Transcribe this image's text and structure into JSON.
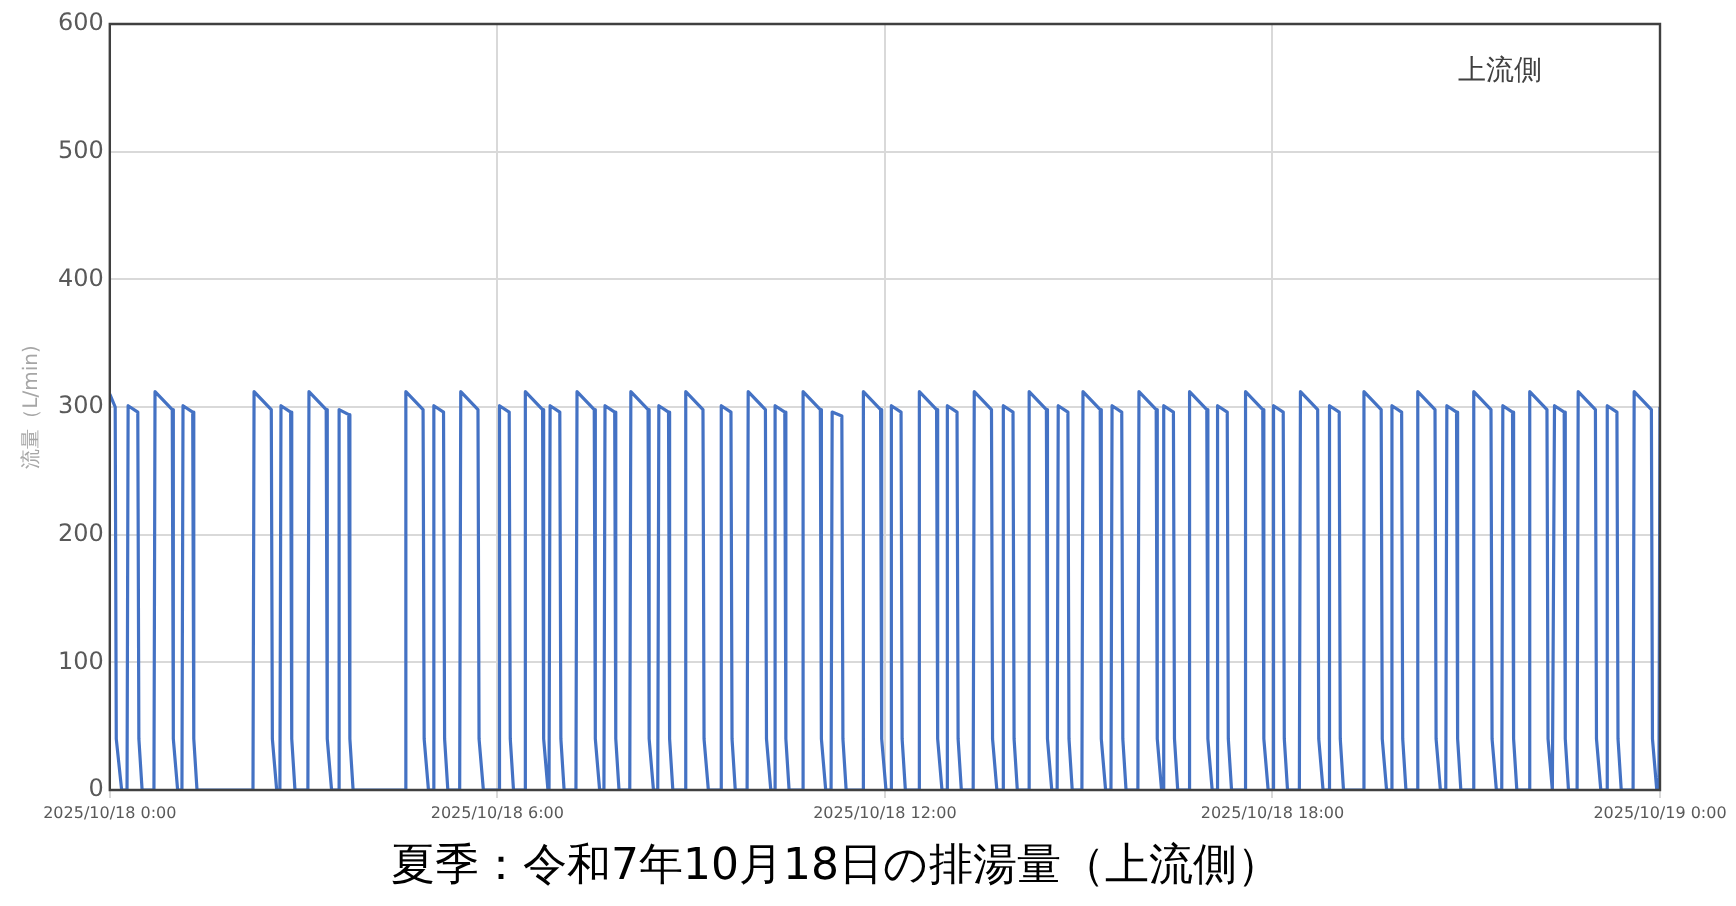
{
  "chart_data": {
    "type": "line",
    "title": "夏季：令和7年10月18日の排湯量（上流側）",
    "ylabel": "流量（L/min)",
    "annotations": [
      "上流側"
    ],
    "xlim": [
      "2025-10-18T00:00",
      "2025-10-19T00:00"
    ],
    "xticks": [
      {
        "value": "2025-10-18T00:00",
        "label": "2025/10/18 0:00"
      },
      {
        "value": "2025-10-18T06:00",
        "label": "2025/10/18 6:00"
      },
      {
        "value": "2025-10-18T12:00",
        "label": "2025/10/18 12:00"
      },
      {
        "value": "2025-10-18T18:00",
        "label": "2025/10/18 18:00"
      },
      {
        "value": "2025-10-19T00:00",
        "label": "2025/10/19 0:00"
      }
    ],
    "ylim": [
      0,
      600
    ],
    "yticks": [
      0,
      100,
      200,
      300,
      400,
      500,
      600
    ],
    "grid": true,
    "legend": false,
    "marker": "none",
    "line_style": "solid",
    "color": "#4472c4",
    "x": [
      "2025-10-18T00:00",
      "2025-10-18T00:05",
      "2025-10-18T00:06",
      "2025-10-18T00:11",
      "2025-10-18T00:16",
      "2025-10-18T00:17",
      "2025-10-18T00:26",
      "2025-10-18T00:27",
      "2025-10-18T00:30",
      "2025-10-18T00:41",
      "2025-10-18T00:42",
      "2025-10-18T00:58",
      "2025-10-18T00:59",
      "2025-10-18T01:03",
      "2025-10-18T01:07",
      "2025-10-18T01:08",
      "2025-10-18T01:17",
      "2025-10-18T01:18",
      "2025-10-18T01:21",
      "2025-10-18T02:13",
      "2025-10-18T02:14",
      "2025-10-18T02:30",
      "2025-10-18T02:31",
      "2025-10-18T02:35",
      "2025-10-18T02:38",
      "2025-10-18T02:39",
      "2025-10-18T02:48",
      "2025-10-18T02:49",
      "2025-10-18T02:52",
      "2025-10-18T03:04",
      "2025-10-18T03:05",
      "2025-10-18T03:21",
      "2025-10-18T03:22",
      "2025-10-18T03:26",
      "2025-10-18T03:32",
      "2025-10-18T03:33",
      "2025-10-18T03:42",
      "2025-10-18T03:43",
      "2025-10-18T03:46",
      "2025-10-18T04:34",
      "2025-10-18T04:35",
      "2025-10-18T04:51",
      "2025-10-18T04:52",
      "2025-10-18T04:56",
      "2025-10-18T05:00",
      "2025-10-18T05:01",
      "2025-10-18T05:10",
      "2025-10-18T05:11",
      "2025-10-18T05:14",
      "2025-10-18T05:25",
      "2025-10-18T05:26",
      "2025-10-18T05:42",
      "2025-10-18T05:43",
      "2025-10-18T05:47",
      "2025-10-18T06:01",
      "2025-10-18T06:02",
      "2025-10-18T06:11",
      "2025-10-18T06:12",
      "2025-10-18T06:15",
      "2025-10-18T06:25",
      "2025-10-18T06:26",
      "2025-10-18T06:42",
      "2025-10-18T06:43",
      "2025-10-18T06:47",
      "2025-10-18T06:48",
      "2025-10-18T06:49",
      "2025-10-18T06:58",
      "2025-10-18T06:59",
      "2025-10-18T07:02",
      "2025-10-18T07:13",
      "2025-10-18T07:14",
      "2025-10-18T07:30",
      "2025-10-18T07:31",
      "2025-10-18T07:35",
      "2025-10-18T07:39",
      "2025-10-18T07:40",
      "2025-10-18T07:49",
      "2025-10-18T07:50",
      "2025-10-18T07:53",
      "2025-10-18T08:03",
      "2025-10-18T08:04",
      "2025-10-18T08:20",
      "2025-10-18T08:21",
      "2025-10-18T08:25",
      "2025-10-18T08:29",
      "2025-10-18T08:30",
      "2025-10-18T08:39",
      "2025-10-18T08:40",
      "2025-10-18T08:43",
      "2025-10-18T08:54",
      "2025-10-18T08:55",
      "2025-10-18T09:11",
      "2025-10-18T09:12",
      "2025-10-18T09:16",
      "2025-10-18T09:27",
      "2025-10-18T09:28",
      "2025-10-18T09:37",
      "2025-10-18T09:38",
      "2025-10-18T09:41",
      "2025-10-18T09:52",
      "2025-10-18T09:53",
      "2025-10-18T10:09",
      "2025-10-18T10:10",
      "2025-10-18T10:14",
      "2025-10-18T10:17",
      "2025-10-18T10:18",
      "2025-10-18T10:27",
      "2025-10-18T10:28",
      "2025-10-18T10:31",
      "2025-10-18T10:43",
      "2025-10-18T10:44",
      "2025-10-18T11:00",
      "2025-10-18T11:01",
      "2025-10-18T11:05",
      "2025-10-18T11:10",
      "2025-10-18T11:11",
      "2025-10-18T11:20",
      "2025-10-18T11:21",
      "2025-10-18T11:24",
      "2025-10-18T11:39",
      "2025-10-18T11:40",
      "2025-10-18T11:56",
      "2025-10-18T11:57",
      "2025-10-18T12:01",
      "2025-10-18T12:05",
      "2025-10-18T12:06",
      "2025-10-18T12:15",
      "2025-10-18T12:16",
      "2025-10-18T12:19",
      "2025-10-18T12:31",
      "2025-10-18T12:32",
      "2025-10-18T12:48",
      "2025-10-18T12:49",
      "2025-10-18T12:53",
      "2025-10-18T12:57",
      "2025-10-18T12:58",
      "2025-10-18T13:07",
      "2025-10-18T13:08",
      "2025-10-18T13:11",
      "2025-10-18T13:22",
      "2025-10-18T13:23",
      "2025-10-18T13:39",
      "2025-10-18T13:40",
      "2025-10-18T13:44",
      "2025-10-18T13:49",
      "2025-10-18T13:50",
      "2025-10-18T13:59",
      "2025-10-18T14:00",
      "2025-10-18T14:03",
      "2025-10-18T14:13",
      "2025-10-18T14:14",
      "2025-10-18T14:30",
      "2025-10-18T14:31",
      "2025-10-18T14:35",
      "2025-10-18T14:40",
      "2025-10-18T14:41",
      "2025-10-18T14:50",
      "2025-10-18T14:51",
      "2025-10-18T14:54",
      "2025-10-18T15:03",
      "2025-10-18T15:04",
      "2025-10-18T15:20",
      "2025-10-18T15:21",
      "2025-10-18T15:25",
      "2025-10-18T15:30",
      "2025-10-18T15:31",
      "2025-10-18T15:40",
      "2025-10-18T15:41",
      "2025-10-18T15:44",
      "2025-10-18T15:55",
      "2025-10-18T15:56",
      "2025-10-18T16:12",
      "2025-10-18T16:13",
      "2025-10-18T16:17",
      "2025-10-18T16:18",
      "2025-10-18T16:19",
      "2025-10-18T16:28",
      "2025-10-18T16:29",
      "2025-10-18T16:32",
      "2025-10-18T16:42",
      "2025-10-18T16:43",
      "2025-10-18T16:59",
      "2025-10-18T17:00",
      "2025-10-18T17:04",
      "2025-10-18T17:08",
      "2025-10-18T17:09",
      "2025-10-18T17:18",
      "2025-10-18T17:19",
      "2025-10-18T17:22",
      "2025-10-18T17:34",
      "2025-10-18T17:35",
      "2025-10-18T17:51",
      "2025-10-18T17:52",
      "2025-10-18T17:56",
      "2025-10-18T18:00",
      "2025-10-18T18:01",
      "2025-10-18T18:10",
      "2025-10-18T18:11",
      "2025-10-18T18:14",
      "2025-10-18T18:25",
      "2025-10-18T18:26",
      "2025-10-18T18:42",
      "2025-10-18T18:43",
      "2025-10-18T18:47",
      "2025-10-18T18:52",
      "2025-10-18T18:53",
      "2025-10-18T19:02",
      "2025-10-18T19:03",
      "2025-10-18T19:06",
      "2025-10-18T19:24",
      "2025-10-18T19:25",
      "2025-10-18T19:41",
      "2025-10-18T19:42",
      "2025-10-18T19:46",
      "2025-10-18T19:50",
      "2025-10-18T19:51",
      "2025-10-18T20:00",
      "2025-10-18T20:01",
      "2025-10-18T20:04",
      "2025-10-18T20:14",
      "2025-10-18T20:15",
      "2025-10-18T20:31",
      "2025-10-18T20:32",
      "2025-10-18T20:36",
      "2025-10-18T20:41",
      "2025-10-18T20:42",
      "2025-10-18T20:51",
      "2025-10-18T20:52",
      "2025-10-18T20:55",
      "2025-10-18T21:06",
      "2025-10-18T21:07",
      "2025-10-18T21:23",
      "2025-10-18T21:24",
      "2025-10-18T21:28",
      "2025-10-18T21:33",
      "2025-10-18T21:34",
      "2025-10-18T21:43",
      "2025-10-18T21:44",
      "2025-10-18T21:47",
      "2025-10-18T21:58",
      "2025-10-18T21:59",
      "2025-10-18T22:15",
      "2025-10-18T22:16",
      "2025-10-18T22:20",
      "2025-10-18T22:21",
      "2025-10-18T22:22",
      "2025-10-18T22:31",
      "2025-10-18T22:32",
      "2025-10-18T22:35",
      "2025-10-18T22:43",
      "2025-10-18T22:44",
      "2025-10-18T23:00",
      "2025-10-18T23:01",
      "2025-10-18T23:05",
      "2025-10-18T23:10",
      "2025-10-18T23:11",
      "2025-10-18T23:20",
      "2025-10-18T23:21",
      "2025-10-18T23:24",
      "2025-10-18T23:35",
      "2025-10-18T23:36",
      "2025-10-18T23:52",
      "2025-10-18T23:53",
      "2025-10-18T23:57",
      "2025-10-18T23:59",
      "2025-10-19T00:00"
    ],
    "values": [
      310,
      300,
      40,
      0,
      0,
      301,
      296,
      40,
      0,
      0,
      312,
      298,
      40,
      0,
      0,
      301,
      296,
      40,
      0,
      0,
      312,
      298,
      40,
      0,
      0,
      301,
      296,
      40,
      0,
      0,
      312,
      298,
      40,
      0,
      0,
      298,
      294,
      40,
      0,
      0,
      312,
      298,
      40,
      0,
      0,
      301,
      296,
      40,
      0,
      0,
      312,
      298,
      40,
      0,
      0,
      301,
      296,
      40,
      0,
      0,
      312,
      298,
      40,
      0,
      0,
      301,
      296,
      40,
      0,
      0,
      312,
      298,
      40,
      0,
      0,
      301,
      296,
      40,
      0,
      0,
      312,
      298,
      40,
      0,
      0,
      301,
      296,
      40,
      0,
      0,
      312,
      298,
      40,
      0,
      0,
      301,
      296,
      40,
      0,
      0,
      312,
      298,
      40,
      0,
      0,
      301,
      296,
      40,
      0,
      0,
      312,
      298,
      40,
      0,
      0,
      296,
      293,
      40,
      0,
      0,
      312,
      298,
      40,
      0,
      0,
      301,
      296,
      40,
      0,
      0,
      312,
      298,
      40,
      0,
      0,
      301,
      296,
      40,
      0,
      0,
      312,
      298,
      40,
      0,
      0,
      301,
      296,
      40,
      0,
      0,
      312,
      298,
      40,
      0,
      0,
      301,
      296,
      40,
      0,
      0,
      312,
      298,
      40,
      0,
      0,
      301,
      296,
      40,
      0,
      0,
      312,
      298,
      40,
      0,
      0,
      301,
      296,
      40,
      0,
      0,
      312,
      298,
      40,
      0,
      0,
      301,
      296,
      40,
      0,
      0,
      312,
      298,
      40,
      0,
      0,
      301,
      296,
      40,
      0,
      0,
      312,
      298,
      40,
      0,
      0,
      301,
      296,
      40,
      0,
      0,
      312,
      298,
      40,
      0,
      0,
      301,
      296,
      40,
      0,
      0,
      312,
      298,
      40,
      0,
      0,
      301,
      296,
      40,
      0,
      0,
      312,
      298,
      40,
      0,
      0,
      301,
      296,
      40,
      0,
      0,
      312,
      298,
      40,
      0,
      0,
      301,
      296,
      40,
      0,
      0,
      312,
      298,
      40,
      0,
      0,
      301,
      296,
      40,
      0,
      0,
      312,
      298,
      40,
      0,
      0,
      300
    ]
  }
}
